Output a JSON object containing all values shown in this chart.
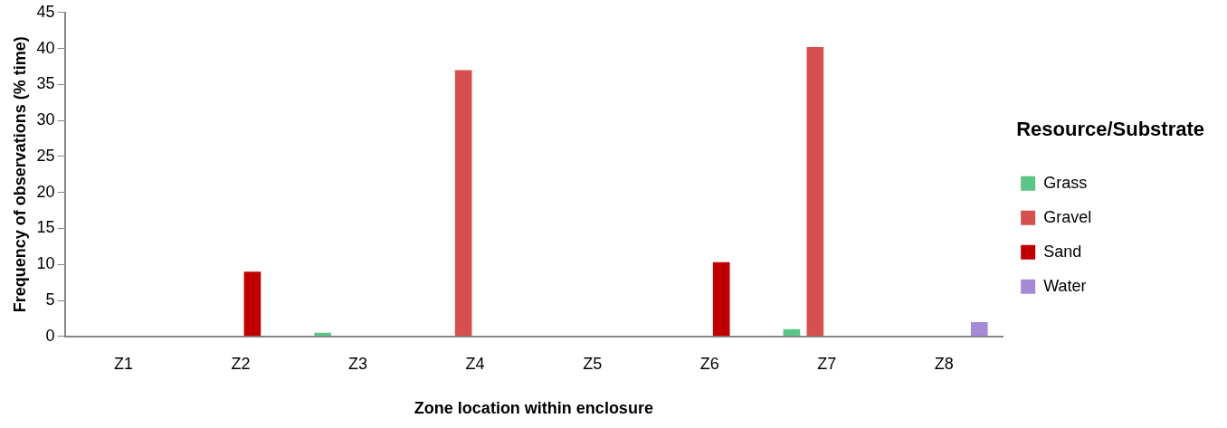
{
  "chart_data": {
    "type": "bar",
    "xlabel": "Zone location within enclosure",
    "ylabel": "Frequency of observations (% time)",
    "legend_title": "Resource/Substrate",
    "legend": "right",
    "grid": false,
    "categories": [
      "Z1",
      "Z2",
      "Z3",
      "Z4",
      "Z5",
      "Z6",
      "Z7",
      "Z8"
    ],
    "series": [
      {
        "name": "Grass",
        "color": "#5cc487",
        "values": [
          0,
          0,
          0.5,
          0,
          0,
          0,
          1,
          0
        ]
      },
      {
        "name": "Gravel",
        "color": "#d65050",
        "values": [
          0,
          0,
          0,
          37,
          0,
          0,
          40.2,
          0
        ]
      },
      {
        "name": "Sand",
        "color": "#c00000",
        "values": [
          0,
          9,
          0,
          0,
          0,
          10.3,
          0,
          0
        ]
      },
      {
        "name": "Water",
        "color": "#a58ad6",
        "values": [
          0,
          0,
          0,
          0,
          0,
          0,
          0,
          2
        ]
      }
    ],
    "ylim": [
      0,
      45
    ],
    "yticks": [
      0,
      5,
      10,
      15,
      20,
      25,
      30,
      35,
      40,
      45
    ]
  }
}
